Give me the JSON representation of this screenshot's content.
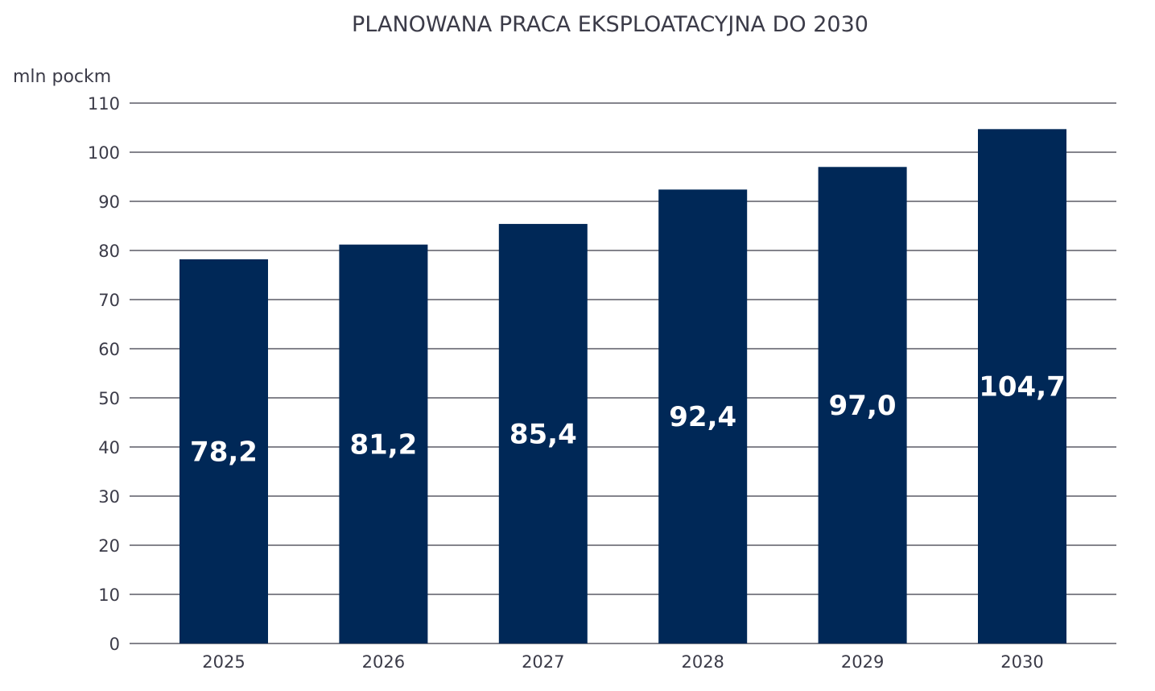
{
  "chart_data": {
    "type": "bar",
    "title": "PLANOWANA PRACA EKSPLOATACYJNA DO 2030",
    "ylabel": "mln pockm",
    "xlabel": "",
    "categories": [
      "2025",
      "2026",
      "2027",
      "2028",
      "2029",
      "2030"
    ],
    "values": [
      78.2,
      81.2,
      85.4,
      92.4,
      97.0,
      104.7
    ],
    "data_labels": [
      "78,2",
      "81,2",
      "85,4",
      "92,4",
      "97,0",
      "104,7"
    ],
    "ylim": [
      0,
      110
    ],
    "yticks": [
      0,
      10,
      20,
      30,
      40,
      50,
      60,
      70,
      80,
      90,
      100,
      110
    ],
    "grid": true,
    "bar_color": "#002857",
    "grid_color": "#3b3b48"
  }
}
